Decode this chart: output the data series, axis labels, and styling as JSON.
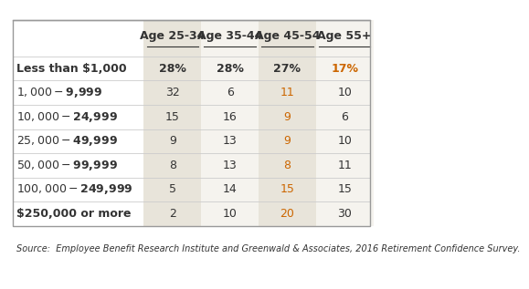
{
  "col_headers": [
    "Age 25-34",
    "Age 35-44",
    "Age 45-54",
    "Age 55+"
  ],
  "row_labels": [
    "Less than $1,000",
    "$1,000 - $9,999",
    "$10,000 - $24,999",
    "$25,000 - $49,999",
    "$50,000 - $99,999",
    "$100,000 - $249,999",
    "$250,000 or more"
  ],
  "data": [
    [
      "28%",
      "28%",
      "27%",
      "17%"
    ],
    [
      "32",
      "6",
      "11",
      "10"
    ],
    [
      "15",
      "16",
      "9",
      "6"
    ],
    [
      "9",
      "13",
      "9",
      "10"
    ],
    [
      "8",
      "13",
      "8",
      "11"
    ],
    [
      "5",
      "14",
      "15",
      "15"
    ],
    [
      "2",
      "10",
      "20",
      "30"
    ]
  ],
  "highlighted_cols": [
    0,
    2
  ],
  "col_bg_color": "#e8e4da",
  "col_bg_color_alt": "#f5f3ee",
  "row_divider_color": "#cccccc",
  "text_color_normal": "#333333",
  "text_color_orange": "#cc6600",
  "orange_cells": [
    [
      0,
      3
    ],
    [
      1,
      2
    ],
    [
      2,
      2
    ],
    [
      3,
      2
    ],
    [
      4,
      2
    ],
    [
      5,
      2
    ],
    [
      6,
      2
    ]
  ],
  "source_text": "Source:  Employee Benefit Research Institute and Greenwald & Associates, 2016 Retirement Confidence Survey.",
  "background_color": "#ffffff",
  "border_color": "#999999",
  "font_size_header": 9,
  "font_size_data": 9,
  "font_size_source": 7
}
